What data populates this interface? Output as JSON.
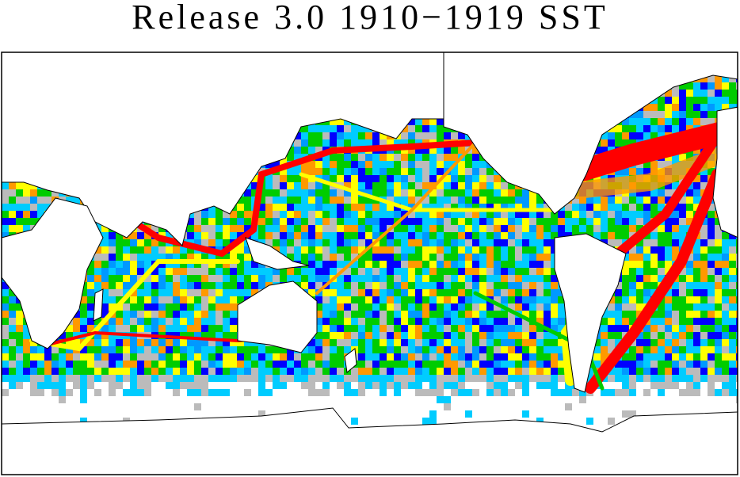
{
  "title": "Release 3.0 1910−1919 SST"
}
